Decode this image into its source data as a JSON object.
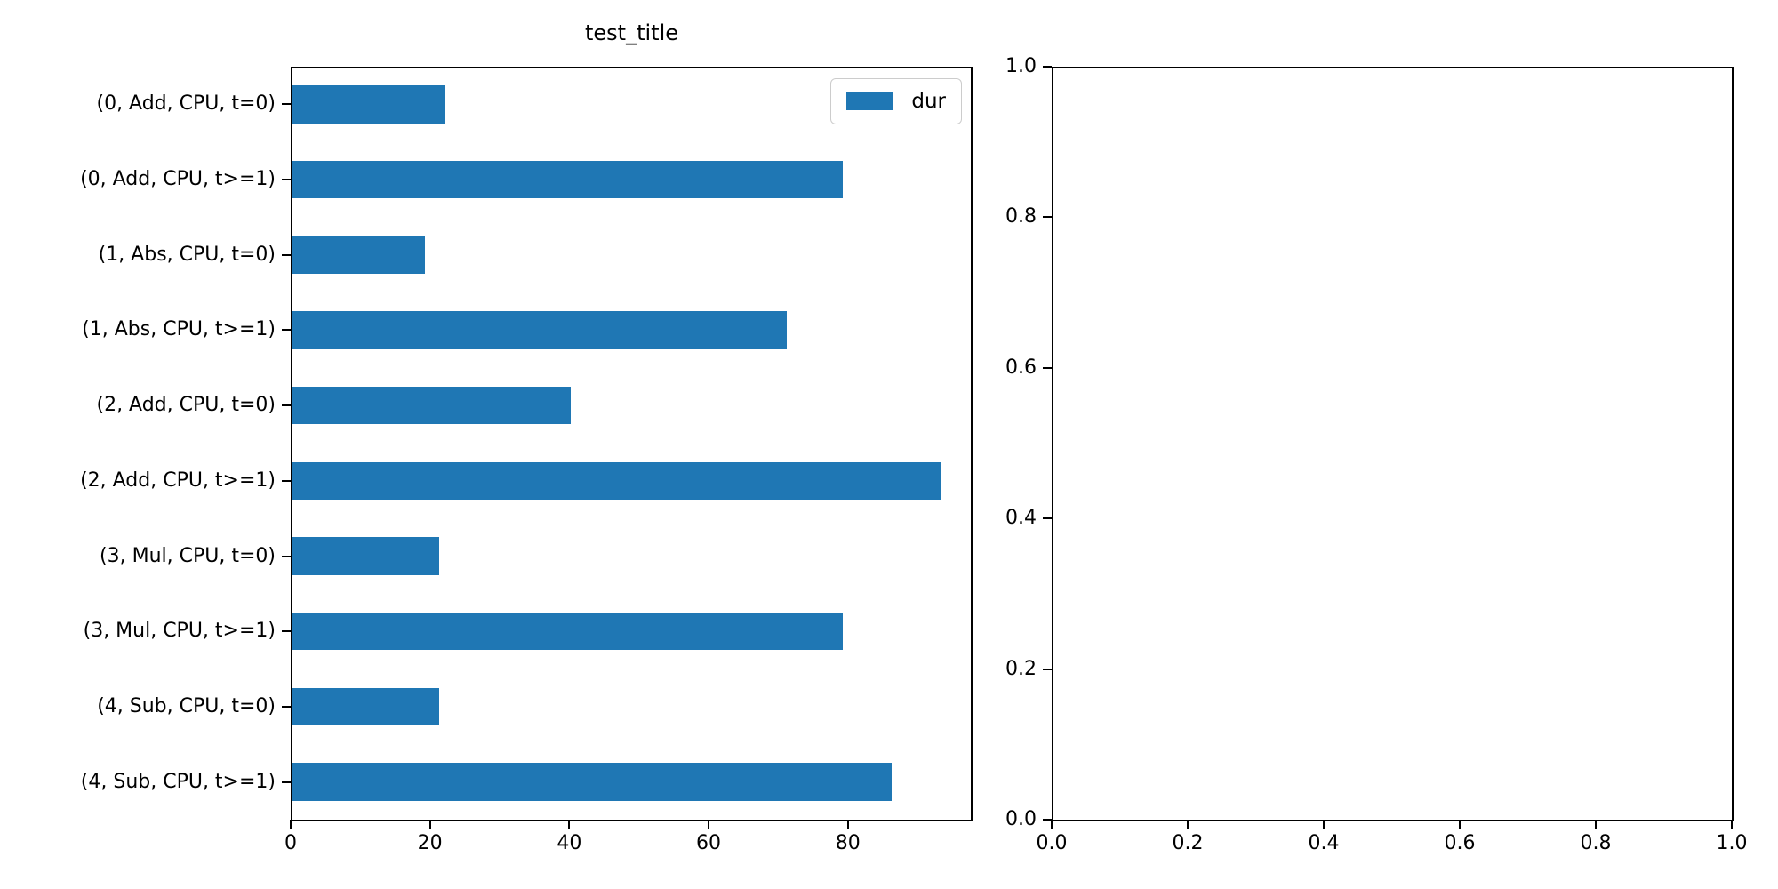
{
  "figure": {
    "background": "#ffffff"
  },
  "chart_data": [
    {
      "type": "bar",
      "orientation": "horizontal",
      "title": "test_title",
      "categories": [
        "(0, Add, CPU, t=0)",
        "(0, Add, CPU, t>=1)",
        "(1, Abs, CPU, t=0)",
        "(1, Abs, CPU, t>=1)",
        "(2, Add, CPU, t=0)",
        "(2, Add, CPU, t>=1)",
        "(3, Mul, CPU, t=0)",
        "(3, Mul, CPU, t>=1)",
        "(4, Sub, CPU, t=0)",
        "(4, Sub, CPU, t>=1)"
      ],
      "category_order": "top-to-bottom",
      "series": [
        {
          "name": "dur",
          "values": [
            22,
            79,
            19,
            71,
            40,
            93,
            21,
            79,
            21,
            86
          ]
        }
      ],
      "xticks": [
        0,
        20,
        40,
        60,
        80
      ],
      "xlim": [
        0,
        97.65
      ],
      "xlabel": "",
      "ylabel": "",
      "grid": false,
      "bar_color": "#1f77b4",
      "legend": {
        "label": "dur",
        "position": "upper right"
      }
    },
    {
      "type": "empty-axes",
      "title": "",
      "xticks": [
        "0.0",
        "0.2",
        "0.4",
        "0.6",
        "0.8",
        "1.0"
      ],
      "yticks_top_to_bottom": [
        "1.0",
        "0.8",
        "0.6",
        "0.4",
        "0.2",
        "0.0"
      ],
      "xlim": [
        0.0,
        1.0
      ],
      "ylim": [
        0.0,
        1.0
      ],
      "grid": false
    }
  ]
}
